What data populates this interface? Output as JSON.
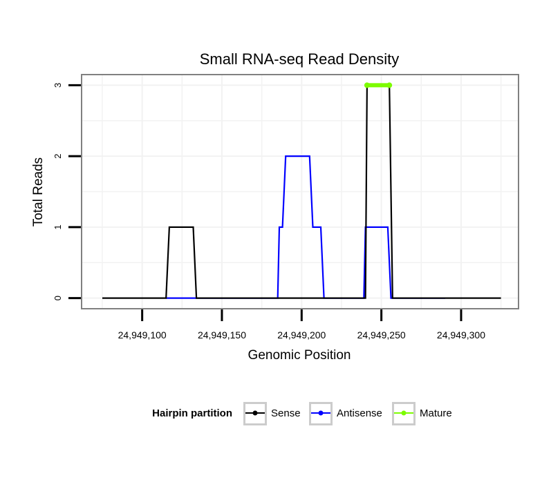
{
  "chart_data": {
    "type": "line",
    "title": "Small RNA-seq Read Density",
    "xlabel": "Genomic Position",
    "ylabel": "Total Reads",
    "xlim": [
      24949062,
      24949336
    ],
    "ylim": [
      -0.15,
      3.15
    ],
    "grid": true,
    "x_ticks": [
      24949100,
      24949150,
      24949200,
      24949250,
      24949300
    ],
    "x_tick_labels": [
      "24,949,100",
      "24,949,150",
      "24,949,200",
      "24,949,250",
      "24,949,300"
    ],
    "y_ticks": [
      0,
      1,
      2,
      3
    ],
    "y_tick_labels": [
      "0",
      "1",
      "2",
      "3"
    ],
    "legend": {
      "title": "Hairpin partition",
      "position": "bottom",
      "entries": [
        "Sense",
        "Antisense",
        "Mature"
      ]
    },
    "series": [
      {
        "name": "Sense",
        "color": "#000000",
        "x": [
          24949075,
          24949115,
          24949117,
          24949132,
          24949134,
          24949240,
          24949241,
          24949255,
          24949257,
          24949325
        ],
        "values": [
          0,
          0,
          1,
          1,
          0,
          0,
          3,
          3,
          0,
          0
        ]
      },
      {
        "name": "Antisense",
        "color": "#0000ff",
        "x": [
          24949115,
          24949132,
          24949134,
          24949185,
          24949186,
          24949188,
          24949190,
          24949205,
          24949207,
          24949212,
          24949214,
          24949239,
          24949240,
          24949254,
          24949256,
          24949290
        ],
        "values": [
          0,
          0,
          0,
          0,
          1,
          1,
          2,
          2,
          1,
          1,
          0,
          0,
          1,
          1,
          0,
          0
        ]
      },
      {
        "name": "Mature",
        "color": "#7cfc00",
        "x": [
          24949241,
          24949255
        ],
        "values": [
          3,
          3
        ]
      }
    ]
  }
}
